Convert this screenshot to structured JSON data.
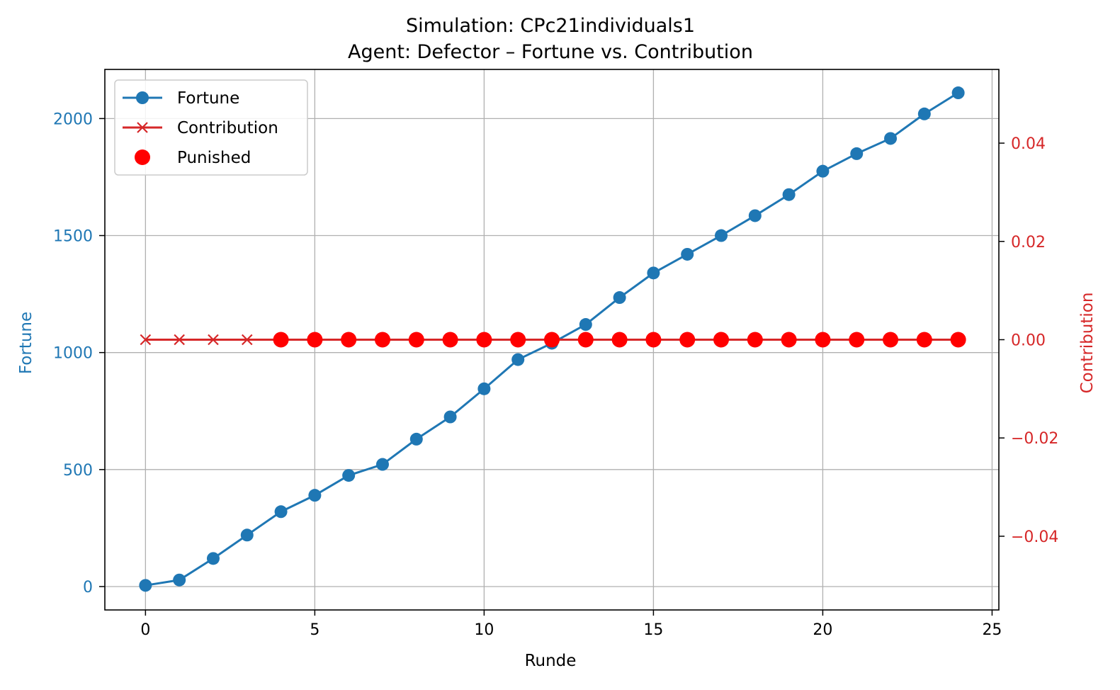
{
  "title_line1": "Simulation: CPc21individuals1",
  "title_line2": "Agent: Defector – Fortune vs. Contribution",
  "colors": {
    "fortune": "#1f77b4",
    "contribution": "#d62728",
    "punished": "#ff0000",
    "grid": "#b0b0b0",
    "axis": "#000000"
  },
  "legend": {
    "fortune": "Fortune",
    "contribution": "Contribution",
    "punished": "Punished"
  },
  "chart_data": {
    "type": "line",
    "title": "Simulation: CPc21individuals1\nAgent: Defector – Fortune vs. Contribution",
    "xlabel": "Runde",
    "ylabel_left": "Fortune",
    "ylabel_right": "Contribution",
    "xlim": [
      -1.2,
      25.2
    ],
    "ylim_left": [
      -100,
      2210
    ],
    "ylim_right": [
      -0.055,
      0.055
    ],
    "grid": true,
    "legend_position": "upper-left",
    "x_ticks": [
      "0",
      "5",
      "10",
      "15",
      "20",
      "25"
    ],
    "y_left_ticks": [
      "0",
      "500",
      "1000",
      "1500",
      "2000"
    ],
    "y_right_ticks": [
      "−0.04",
      "−0.02",
      "0.00",
      "0.02",
      "0.04"
    ],
    "x": [
      0,
      1,
      2,
      3,
      4,
      5,
      6,
      7,
      8,
      9,
      10,
      11,
      12,
      13,
      14,
      15,
      16,
      17,
      18,
      19,
      20,
      21,
      22,
      23,
      24
    ],
    "series": [
      {
        "name": "Fortune",
        "axis": "left",
        "marker": "circle",
        "values": [
          5,
          28,
          120,
          220,
          320,
          390,
          475,
          522,
          630,
          725,
          845,
          970,
          1040,
          1120,
          1235,
          1340,
          1420,
          1500,
          1585,
          1675,
          1775,
          1850,
          1915,
          2020,
          2110
        ]
      },
      {
        "name": "Contribution",
        "axis": "right",
        "marker": "x",
        "values": [
          0,
          0,
          0,
          0,
          0,
          0,
          0,
          0,
          0,
          0,
          0,
          0,
          0,
          0,
          0,
          0,
          0,
          0,
          0,
          0,
          0,
          0,
          0,
          0,
          0
        ]
      },
      {
        "name": "Punished",
        "axis": "right",
        "marker": "filled-circle",
        "x": [
          4,
          5,
          6,
          7,
          8,
          9,
          10,
          11,
          12,
          13,
          14,
          15,
          16,
          17,
          18,
          19,
          20,
          21,
          22,
          23,
          24
        ],
        "values": [
          0,
          0,
          0,
          0,
          0,
          0,
          0,
          0,
          0,
          0,
          0,
          0,
          0,
          0,
          0,
          0,
          0,
          0,
          0,
          0,
          0
        ]
      }
    ]
  }
}
